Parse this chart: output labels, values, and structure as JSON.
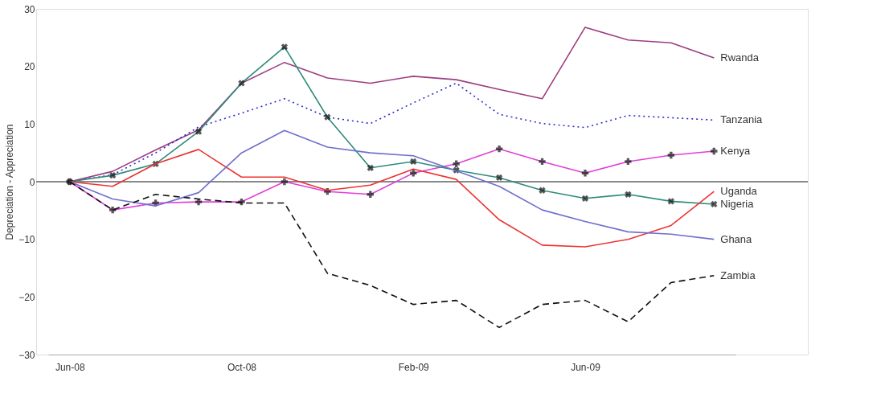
{
  "chart_data": {
    "type": "line",
    "ylabel": "Depreciation - Appreciation",
    "categories": [
      "Jun-08",
      null,
      null,
      null,
      "Oct-08",
      null,
      null,
      null,
      "Feb-09",
      null,
      null,
      null,
      "Jun-09",
      null,
      null,
      null
    ],
    "ylim": [
      -30,
      30
    ],
    "yticks": [
      -30,
      -20,
      -10,
      0,
      10,
      20,
      30
    ],
    "grid": false,
    "ref_lines": [
      {
        "axis": "y",
        "value": 0,
        "color": "#888888",
        "line_style": "solid"
      }
    ],
    "series": [
      {
        "name": "Rwanda",
        "color": "#9c3d80",
        "line_style": "solid",
        "marker": "none",
        "values": [
          0,
          1.8,
          5.5,
          9.0,
          17.1,
          20.7,
          18.0,
          17.1,
          18.3,
          17.7,
          16.0,
          14.4,
          26.8,
          24.6,
          24.1,
          21.5
        ]
      },
      {
        "name": "Tanzania",
        "color": "#2a2acc",
        "line_style": "dotted",
        "marker": "none",
        "values": [
          0,
          1.2,
          5.0,
          9.5,
          11.9,
          14.4,
          11.2,
          10.1,
          13.7,
          17.1,
          11.7,
          10.1,
          9.4,
          11.5,
          11.1,
          10.7
        ]
      },
      {
        "name": "Kenya",
        "color": "#e040d8",
        "line_style": "solid",
        "marker": "cross",
        "values": [
          0,
          -4.9,
          -3.7,
          -3.5,
          -3.5,
          0,
          -1.7,
          -2.2,
          1.5,
          3.1,
          5.7,
          3.5,
          1.5,
          3.5,
          4.6,
          5.3
        ]
      },
      {
        "name": "Nigeria",
        "color": "#2e8b7a",
        "line_style": "solid",
        "marker": "cross",
        "values": [
          0,
          1.1,
          3.1,
          8.7,
          17.1,
          23.4,
          11.2,
          2.4,
          3.5,
          2.0,
          0.7,
          -1.5,
          -2.9,
          -2.2,
          -3.4,
          -3.9
        ]
      },
      {
        "name": "Uganda",
        "color": "#ee3333",
        "line_style": "solid",
        "marker": "none",
        "values": [
          0,
          -0.8,
          3.1,
          5.6,
          0.8,
          0.8,
          -1.5,
          -0.6,
          2.2,
          0.4,
          -6.6,
          -11.0,
          -11.3,
          -10.0,
          -7.6,
          -1.7
        ]
      },
      {
        "name": "Ghana",
        "color": "#6f6fcf",
        "line_style": "solid",
        "marker": "none",
        "values": [
          0,
          -3.0,
          -4.2,
          -1.9,
          5.0,
          8.9,
          6.0,
          5.0,
          4.5,
          1.9,
          -0.8,
          -4.9,
          -6.9,
          -8.7,
          -9.1,
          -10.0
        ]
      },
      {
        "name": "Zambia",
        "color": "#111111",
        "line_style": "dashed",
        "marker": "none",
        "values": [
          0,
          -4.9,
          -2.2,
          -3.0,
          -3.7,
          -3.7,
          -15.9,
          -18.0,
          -21.3,
          -20.6,
          -25.3,
          -21.3,
          -20.6,
          -24.3,
          -17.5,
          -16.3
        ]
      }
    ]
  }
}
